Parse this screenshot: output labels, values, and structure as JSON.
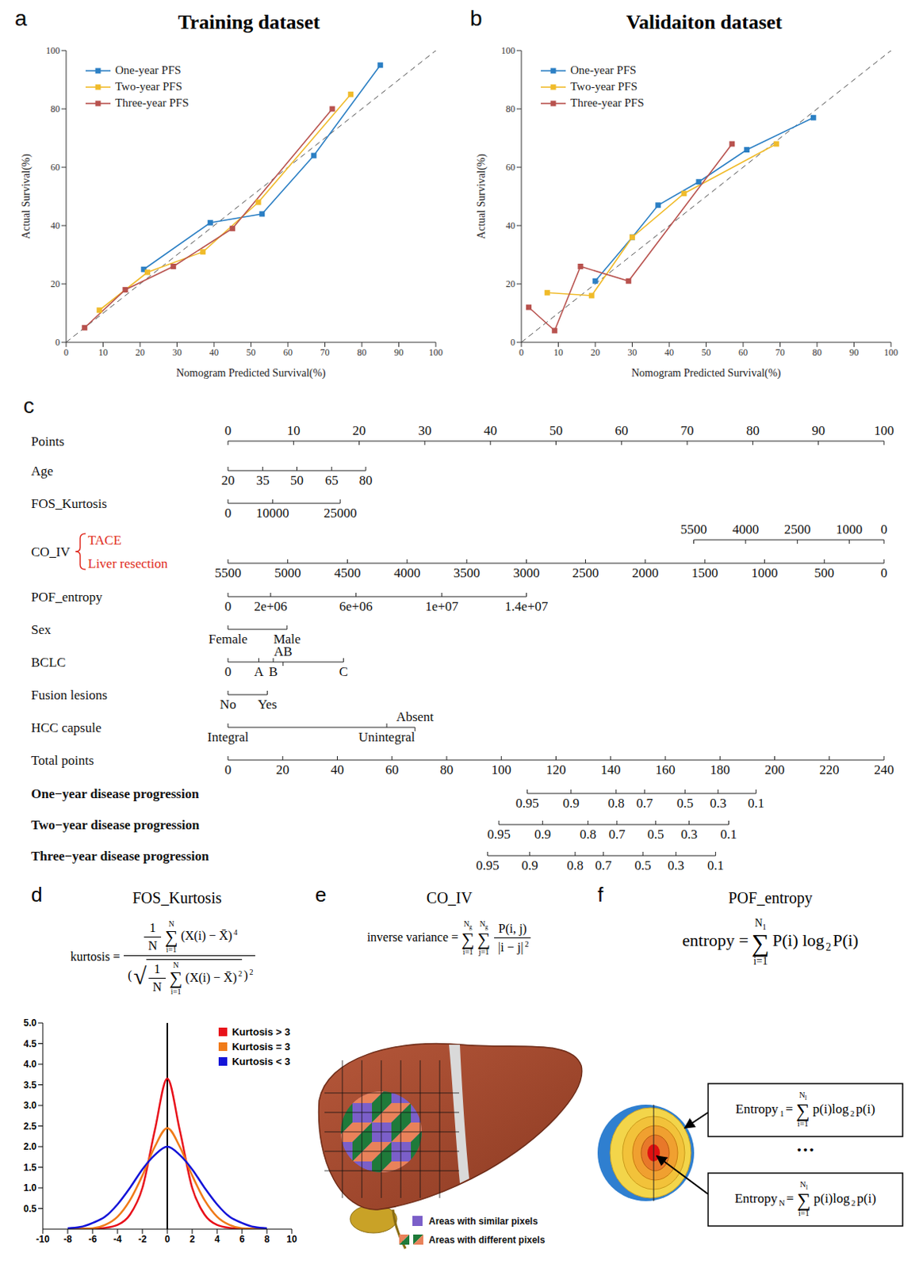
{
  "chart_data": [
    {
      "letter": "a",
      "type": "line",
      "title": "Training dataset",
      "x_label": "Nomogram Predicted Survival(%)",
      "y_label": "Actual Survival(%)",
      "xlim": [
        0,
        100
      ],
      "xticks": [
        0,
        10,
        20,
        30,
        40,
        50,
        60,
        70,
        80,
        90,
        100
      ],
      "ylim": [
        0,
        100
      ],
      "yticks": [
        0,
        20,
        40,
        60,
        80,
        100
      ],
      "legend": "upper left",
      "marker": "square",
      "series": [
        {
          "name": "One-year PFS",
          "color": "#2b7fc4",
          "x": [
            21,
            39,
            53,
            67,
            85
          ],
          "values": [
            25,
            41,
            44,
            64,
            95
          ]
        },
        {
          "name": "Two-year PFS",
          "color": "#f0bb2a",
          "x": [
            9,
            22,
            37,
            52,
            77
          ],
          "values": [
            11,
            24,
            31,
            48,
            85
          ]
        },
        {
          "name": "Three-year PFS",
          "color": "#b8524e",
          "x": [
            5,
            16,
            29,
            45,
            72
          ],
          "values": [
            5,
            18,
            26,
            39,
            80
          ]
        }
      ]
    },
    {
      "letter": "b",
      "type": "line",
      "title": "Validaiton dataset",
      "x_label": "Nomogram Predicted Survival(%)",
      "y_label": "Actual Survival(%)",
      "xlim": [
        0,
        100
      ],
      "xticks": [
        0,
        10,
        20,
        30,
        40,
        50,
        60,
        70,
        80,
        90,
        100
      ],
      "ylim": [
        0,
        100
      ],
      "yticks": [
        0,
        20,
        40,
        60,
        80,
        100
      ],
      "legend": "upper left",
      "marker": "square",
      "series": [
        {
          "name": "One-year PFS",
          "color": "#2b7fc4",
          "x": [
            20,
            30,
            37,
            48,
            61,
            79
          ],
          "values": [
            21,
            36,
            47,
            55,
            66,
            77
          ]
        },
        {
          "name": "Two-year PFS",
          "color": "#f0bb2a",
          "x": [
            7,
            19,
            30,
            44,
            69
          ],
          "values": [
            17,
            16,
            36,
            51,
            68
          ]
        },
        {
          "name": "Three-year PFS",
          "color": "#b8524e",
          "x": [
            2,
            9,
            16,
            29,
            57
          ],
          "values": [
            12,
            4,
            26,
            21,
            68
          ]
        }
      ]
    },
    {
      "letter": "d",
      "type": "line",
      "title": "FOS_Kurtosis",
      "formula": [
        {
          "text": "kurtosis ="
        },
        {
          "frac": [
            [
              {
                "frac": [
                  [
                    {
                      "text": "1"
                    }
                  ],
                  [
                    {
                      "text": "N"
                    }
                  ]
                ]
              },
              {
                "sum": {
                  "symbol": "∑",
                  "from": "i=1",
                  "to": "N"
                }
              },
              {
                "text": "(X(i) − X̄)"
              },
              {
                "sup": "4"
              }
            ],
            [
              {
                "text": "("
              },
              {
                "root": {
                  "symbol": "√",
                  "body": [
                    {
                      "frac": [
                        [
                          {
                            "text": "1"
                          }
                        ],
                        [
                          {
                            "text": "N"
                          }
                        ]
                      ]
                    },
                    {
                      "sum": {
                        "symbol": "∑",
                        "from": "i=1",
                        "to": "N"
                      }
                    },
                    {
                      "text": "(X(i) − X̄)"
                    },
                    {
                      "sup": "2"
                    }
                  ]
                }
              },
              {
                "text": ")"
              },
              {
                "sup": "2"
              }
            ]
          ]
        }
      ],
      "x": [
        -8,
        -7,
        -6,
        -5,
        -4,
        -3,
        -2,
        -1,
        0,
        1,
        2,
        3,
        4,
        5,
        6,
        7,
        8
      ],
      "xlim": [
        -10,
        10
      ],
      "xticks": [
        -10,
        -8,
        -6,
        -4,
        -2,
        0,
        2,
        4,
        6,
        8,
        10
      ],
      "ylim": [
        0,
        5
      ],
      "yticks": [
        0.5,
        {
          "value": 1,
          "label": "1.0"
        },
        1.5,
        {
          "value": 2,
          "label": "2.0"
        },
        2.5,
        {
          "value": 3,
          "label": "3.0"
        },
        3.5,
        {
          "value": 4,
          "label": "4.0"
        },
        4.5,
        {
          "value": 5,
          "label": "5.0"
        }
      ],
      "reference_x": 0,
      "legend": "upper right",
      "series": [
        {
          "name": "Kurtosis > 3",
          "color": "#e8101a",
          "values": [
            0,
            0,
            0.01,
            0.03,
            0.1,
            0.35,
            1.0,
            2.4,
            3.65,
            2.4,
            1.0,
            0.35,
            0.1,
            0.03,
            0.01,
            0,
            0
          ]
        },
        {
          "name": "Kurtosis = 3",
          "color": "#f07a18",
          "values": [
            0,
            0.01,
            0.02,
            0.1,
            0.3,
            0.7,
            1.3,
            2.0,
            2.45,
            2.0,
            1.3,
            0.7,
            0.3,
            0.1,
            0.02,
            0.01,
            0
          ]
        },
        {
          "name": "Kurtosis < 3",
          "color": "#1414d8",
          "values": [
            0.02,
            0.05,
            0.15,
            0.3,
            0.6,
            1.0,
            1.45,
            1.8,
            2.0,
            1.8,
            1.45,
            1.0,
            0.6,
            0.3,
            0.15,
            0.05,
            0.02
          ]
        }
      ]
    }
  ],
  "nomogram": {
    "letter": "c",
    "points": {
      "label": "Points",
      "ticks": [
        0,
        10,
        20,
        30,
        40,
        50,
        60,
        70,
        80,
        90,
        100
      ]
    },
    "rows": [
      {
        "label": "Age",
        "ticks": [
          {
            "value": 20,
            "points": 0
          },
          {
            "value": 35,
            "points": 5.3
          },
          {
            "value": 50,
            "points": 10.5
          },
          {
            "value": 65,
            "points": 15.8
          },
          {
            "value": 80,
            "points": 21
          }
        ]
      },
      {
        "label": "FOS_Kurtosis",
        "ticks": [
          {
            "value": 0,
            "points": 0
          },
          {
            "value": 10000,
            "points": 6.8
          },
          {
            "value": 25000,
            "points": 17.1
          }
        ]
      },
      {
        "label": "CO_IV",
        "color": "#e02b20",
        "groups": [
          {
            "name": "TACE",
            "ticks": [
              {
                "value": 5500,
                "points": 71
              },
              {
                "value": 4000,
                "points": 78.9
              },
              {
                "value": 2500,
                "points": 86.8
              },
              {
                "value": 1000,
                "points": 94.7
              },
              {
                "value": 0,
                "points": 100
              }
            ]
          },
          {
            "name": "Liver resection",
            "ticks": [
              {
                "value": 5500,
                "points": 0
              },
              {
                "value": 5000,
                "points": 9.1
              },
              {
                "value": 4500,
                "points": 18.2
              },
              {
                "value": 4000,
                "points": 27.3
              },
              {
                "value": 3500,
                "points": 36.4
              },
              {
                "value": 3000,
                "points": 45.5
              },
              {
                "value": 2500,
                "points": 54.5
              },
              {
                "value": 2000,
                "points": 63.6
              },
              {
                "value": 1500,
                "points": 72.7
              },
              {
                "value": 1000,
                "points": 81.8
              },
              {
                "value": 500,
                "points": 90.9
              },
              {
                "value": 0,
                "points": 100
              }
            ]
          }
        ]
      },
      {
        "label": "POF_entropy",
        "ticks": [
          {
            "value": 0,
            "points": 0
          },
          {
            "value": 2000000,
            "label": "2e+06",
            "points": 6.5
          },
          {
            "value": 6000000,
            "label": "6e+06",
            "points": 19.5
          },
          {
            "value": 10000000,
            "label": "1e+07",
            "points": 32.6
          },
          {
            "value": 14000000,
            "label": "1.4e+07",
            "points": 45.5
          }
        ]
      },
      {
        "label": "Sex",
        "ticks": [
          {
            "label": "Female",
            "points": 0
          },
          {
            "label": "Male",
            "points": 9
          }
        ]
      },
      {
        "label": "BCLC",
        "ticks": [
          {
            "label": "0",
            "points": 0
          },
          {
            "label": "A",
            "points": 4.7
          },
          {
            "label": "B",
            "points": 6.9
          },
          {
            "label": "AB",
            "points": 8.4
          },
          {
            "label": "C",
            "points": 17.6
          }
        ]
      },
      {
        "label": "Fusion lesions",
        "ticks": [
          {
            "label": "No",
            "points": 0
          },
          {
            "label": "Yes",
            "points": 6
          }
        ]
      },
      {
        "label": "HCC capsule",
        "ticks": [
          {
            "label": "Integral",
            "points": 0
          },
          {
            "label": "Unintegral",
            "points": 24.2
          },
          {
            "label": "Absent",
            "points": 28.5
          }
        ]
      }
    ],
    "total_points": {
      "label": "Total points",
      "ticks": [
        0,
        20,
        40,
        60,
        80,
        100,
        120,
        140,
        160,
        180,
        200,
        220,
        240
      ]
    },
    "probability_rows": [
      {
        "label": "One−year disease progression",
        "ticks": [
          {
            "value": 0.95,
            "total": 109.5
          },
          {
            "value": 0.9,
            "total": 125.5
          },
          {
            "value": 0.8,
            "total": 142
          },
          {
            "value": 0.7,
            "total": 152.4
          },
          {
            "value": 0.5,
            "total": 167.2
          },
          {
            "value": 0.3,
            "total": 179.3
          },
          {
            "value": 0.1,
            "total": 193.2
          }
        ]
      },
      {
        "label": "Two−year disease progression",
        "ticks": [
          {
            "value": 0.95,
            "total": 99.1
          },
          {
            "value": 0.9,
            "total": 115.1
          },
          {
            "value": 0.8,
            "total": 131.7
          },
          {
            "value": 0.7,
            "total": 142.3
          },
          {
            "value": 0.5,
            "total": 156.5
          },
          {
            "value": 0.3,
            "total": 168.7
          },
          {
            "value": 0.1,
            "total": 183.2
          }
        ]
      },
      {
        "label": "Three−year disease progression",
        "ticks": [
          {
            "value": 0.95,
            "total": 95
          },
          {
            "value": 0.9,
            "total": 110.4
          },
          {
            "value": 0.8,
            "total": 127
          },
          {
            "value": 0.7,
            "total": 137.3
          },
          {
            "value": 0.5,
            "total": 151.8
          },
          {
            "value": 0.3,
            "total": 163.9
          },
          {
            "value": 0.1,
            "total": 178.4
          }
        ]
      }
    ]
  },
  "panel_e": {
    "letter": "e",
    "title": "CO_IV",
    "formula": [
      {
        "text": "inverse variance ="
      },
      {
        "sum": {
          "symbol": "∑",
          "from": "i=1",
          "to": "N",
          "to_sub": "g"
        }
      },
      {
        "sum": {
          "symbol": "∑",
          "from": "j=1",
          "to": "N",
          "to_sub": "g"
        }
      },
      {
        "frac": [
          [
            {
              "text": "P(i, j)"
            }
          ],
          [
            {
              "text": "|i − j|"
            },
            {
              "sup": "2"
            }
          ]
        ]
      }
    ],
    "legend": [
      {
        "label": "Areas with similar pixels",
        "colors": [
          "#7b5fc9"
        ]
      },
      {
        "label": "Areas with different pixels",
        "colors": [
          "#e9825a",
          "#1f7a3a"
        ]
      }
    ]
  },
  "panel_f": {
    "letter": "f",
    "title": "POF_entropy",
    "formula": [
      {
        "text": "entropy ="
      },
      {
        "sum": {
          "symbol": "∑",
          "from": "i=1",
          "to": "N",
          "to_sub": "1"
        }
      },
      {
        "text": "P(i) log"
      },
      {
        "sub": "2"
      },
      {
        "text": "P(i)"
      }
    ],
    "boxes": [
      [
        {
          "text": "Entropy"
        },
        {
          "sub": "1"
        },
        {
          "text": "="
        },
        {
          "sum": {
            "symbol": "∑",
            "from": "i=1",
            "to": "N",
            "to_sub": "l"
          }
        },
        {
          "text": "p(i)log"
        },
        {
          "sub": "2"
        },
        {
          "text": "p(i)"
        }
      ],
      [
        {
          "text": "Entropy"
        },
        {
          "sub": "N"
        },
        {
          "text": "="
        },
        {
          "sum": {
            "symbol": "∑",
            "from": "i=1",
            "to": "N",
            "to_sub": "l"
          }
        },
        {
          "text": "p(i)log"
        },
        {
          "sub": "2"
        },
        {
          "text": "p(i)"
        }
      ]
    ],
    "ellipsis": "···"
  }
}
